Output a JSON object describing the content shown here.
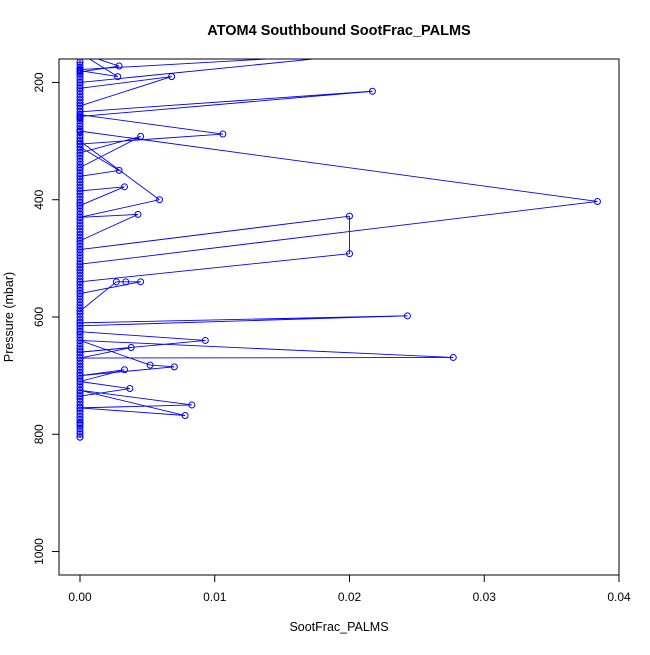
{
  "chart_data": {
    "type": "line",
    "title": "ATOM4 Southbound SootFrac_PALMS",
    "xlabel": "SootFrac_PALMS",
    "ylabel": "Pressure (mbar)",
    "xlim": [
      0.0,
      0.04
    ],
    "ylim": [
      1040,
      160
    ],
    "y_reversed": true,
    "x_ticks": [
      "0.00",
      "0.01",
      "0.02",
      "0.03",
      "0.04"
    ],
    "y_ticks": [
      "200",
      "400",
      "600",
      "800",
      "1000"
    ],
    "x_tick_values": [
      0,
      0.01,
      0.02,
      0.03,
      0.04
    ],
    "y_tick_values": [
      200,
      400,
      600,
      800,
      1000
    ],
    "grid": false,
    "legend": "none",
    "series_color": "#0000ff",
    "series": [
      {
        "x": [
          0.0,
          0.0,
          0.0028,
          0.0,
          0.0029,
          0.0,
          0.0,
          0.0068,
          0.0,
          0.0,
          0.0217,
          0.0,
          0.0,
          0.0217,
          0.0,
          0.0,
          0.0,
          0.0106,
          0.0,
          0.0,
          0.0045,
          0.0,
          0.0,
          0.0,
          0.0029,
          0.0,
          0.0,
          0.0033,
          0.0,
          0.0,
          0.0059,
          0.0,
          0.0043,
          0.0,
          0.0,
          0.0384,
          0.0,
          0.0,
          0.02,
          0.02,
          0.0,
          0.0,
          0.0,
          0.0045,
          0.0034,
          0.0027,
          0.0,
          0.0,
          0.0243,
          0.0,
          0.0,
          0.0,
          0.0093,
          0.0,
          0.0038,
          0.0,
          0.0277,
          0.0,
          0.0052,
          0.007,
          0.0,
          0.0033,
          0.0,
          0.0037,
          0.0,
          0.0,
          0.0083,
          0.0,
          0.0078,
          0.0,
          0.0,
          0.0
        ],
        "y": [
          165,
          180,
          190,
          150,
          172,
          182,
          210,
          190,
          240,
          200,
          150,
          178,
          250,
          215,
          258,
          235,
          305,
          288,
          255,
          320,
          292,
          345,
          262,
          360,
          350,
          310,
          385,
          378,
          410,
          300,
          400,
          430,
          425,
          470,
          283,
          403,
          510,
          485,
          428,
          492,
          540,
          520,
          560,
          540,
          540,
          540,
          590,
          610,
          598,
          615,
          655,
          625,
          640,
          660,
          652,
          670,
          669,
          640,
          682,
          685,
          700,
          690,
          710,
          722,
          735,
          755,
          750,
          725,
          768,
          755,
          782,
          805
        ]
      }
    ]
  }
}
